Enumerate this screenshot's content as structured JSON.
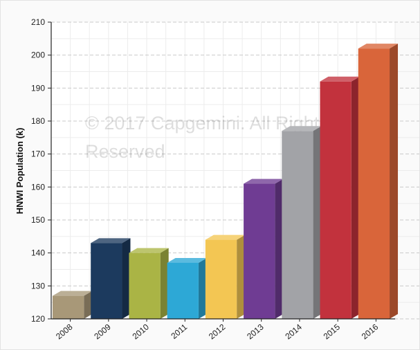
{
  "chart_data": {
    "type": "bar",
    "ylabel": "HNWI Population (k)",
    "xlabel": "",
    "ylim": [
      120,
      210
    ],
    "yticks": [
      120,
      130,
      140,
      150,
      160,
      170,
      180,
      190,
      200,
      210
    ],
    "grid": true,
    "categories": [
      "2008",
      "2009",
      "2010",
      "2011",
      "2012",
      "2013",
      "2014",
      "2015",
      "2016"
    ],
    "values": [
      127,
      143,
      140,
      137,
      144,
      161,
      177,
      192,
      202
    ],
    "colors": [
      "#a89878",
      "#1c3a5e",
      "#aab445",
      "#2da8d6",
      "#f3c653",
      "#6f3c93",
      "#a2a3a7",
      "#c2323d",
      "#d9653a"
    ],
    "watermark": [
      "© 2017 Capgemini. All Rights",
      "Reserved"
    ]
  }
}
